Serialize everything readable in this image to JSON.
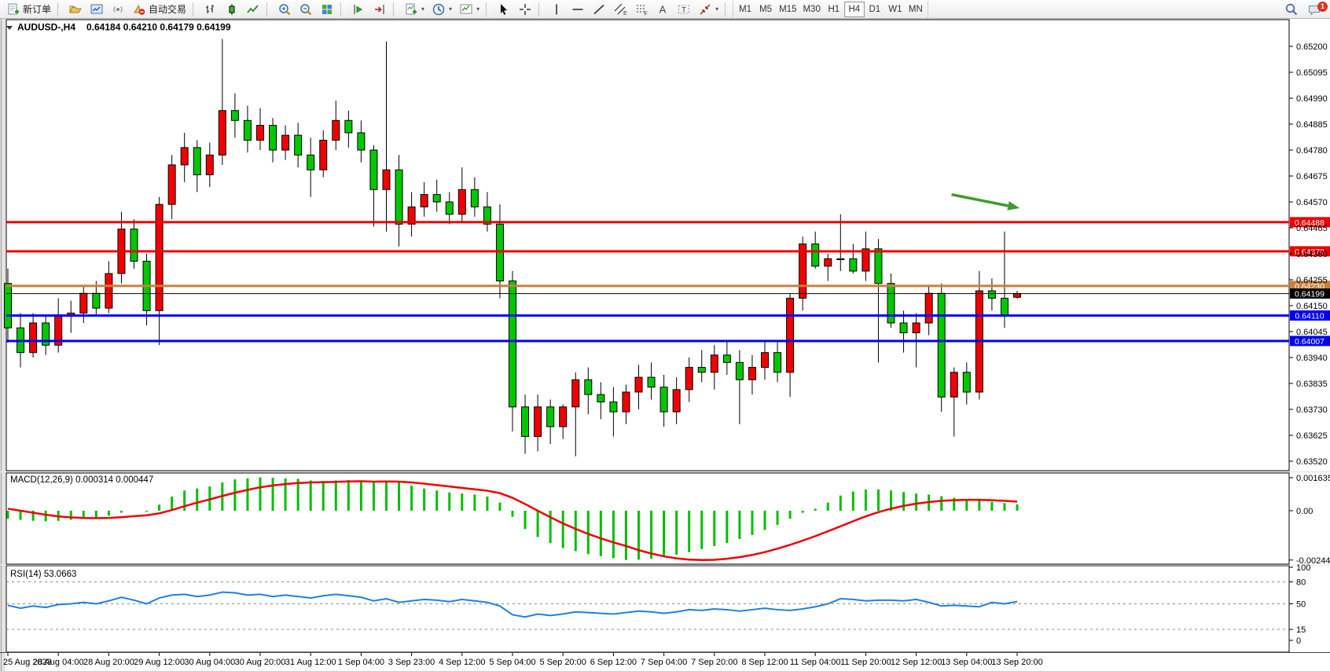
{
  "toolbar": {
    "new_order": "新订单",
    "auto_trading": "自动交易",
    "timeframes": [
      "M1",
      "M5",
      "M15",
      "M30",
      "H1",
      "H4",
      "D1",
      "W1",
      "MN"
    ],
    "active_timeframe": "H4",
    "notification_count": "1"
  },
  "chart": {
    "symbol_title": "AUDUSD-,H4",
    "ohlc_display": "0.64184 0.64210 0.64179 0.64199",
    "macd_label": "MACD(12,26,9) 0.000314 0.000447",
    "rsi_label": "RSI(14) 53.0663"
  },
  "chart_data": [
    {
      "type": "candlestick",
      "symbol": "AUDUSD-",
      "timeframe": "H4",
      "last_ohlc": {
        "open": 0.64184,
        "high": 0.6421,
        "low": 0.64179,
        "close": 0.64199
      },
      "up_color": "#f20000",
      "down_color": "#00c800",
      "wick_color": "#000000",
      "grid": false,
      "y_ticks": [
        0.652,
        0.65095,
        0.6499,
        0.64885,
        0.6478,
        0.64675,
        0.6457,
        0.64465,
        0.6436,
        0.64255,
        0.6415,
        0.64045,
        0.6394,
        0.63835,
        0.6373,
        0.63625,
        0.6352
      ],
      "x_labels": [
        "25 Aug 2023",
        "28 Aug 04:00",
        "28 Aug 20:00",
        "29 Aug 12:00",
        "30 Aug 04:00",
        "30 Aug 20:00",
        "31 Aug 12:00",
        "1 Sep 04:00",
        "3 Sep 23:00",
        "4 Sep 12:00",
        "5 Sep 04:00",
        "5 Sep 20:00",
        "6 Sep 12:00",
        "7 Sep 04:00",
        "7 Sep 20:00",
        "8 Sep 12:00",
        "11 Sep 04:00",
        "11 Sep 20:00",
        "12 Sep 12:00",
        "13 Sep 04:00",
        "13 Sep 20:00"
      ],
      "bars_per_label": 4,
      "levels": [
        {
          "price": 0.64488,
          "label": "0.64488",
          "color": "#ee0000",
          "width": 3
        },
        {
          "price": 0.6437,
          "label": "0.64370",
          "color": "#ee0000",
          "width": 3
        },
        {
          "price": 0.6423,
          "label": "0.64230",
          "color": "#c8823c",
          "width": 3
        },
        {
          "price": 0.6411,
          "label": "0.64110",
          "color": "#0000ee",
          "width": 3
        },
        {
          "price": 0.64007,
          "label": "0.64007",
          "color": "#0000ee",
          "width": 3
        }
      ],
      "current_price": {
        "price": 0.64199,
        "label": "0.64199",
        "line_color": "#000000",
        "badge_color": "#000000"
      },
      "annotation_arrow": {
        "color": "#3e9b2e",
        "x1_bar": 74.8,
        "y1_price": 0.646,
        "x2_bar": 80.2,
        "y2_price": 0.64545
      },
      "candles": [
        [
          0.6424,
          0.643,
          0.64,
          0.6406
        ],
        [
          0.6406,
          0.6412,
          0.639,
          0.6396
        ],
        [
          0.6396,
          0.6412,
          0.6394,
          0.6408
        ],
        [
          0.6408,
          0.6411,
          0.6395,
          0.6399
        ],
        [
          0.6399,
          0.6418,
          0.6396,
          0.6411
        ],
        [
          0.6411,
          0.6417,
          0.6404,
          0.6412
        ],
        [
          0.6412,
          0.6423,
          0.6408,
          0.642
        ],
        [
          0.642,
          0.6425,
          0.6411,
          0.6414
        ],
        [
          0.6414,
          0.6433,
          0.6412,
          0.6428
        ],
        [
          0.6428,
          0.6453,
          0.6424,
          0.6446
        ],
        [
          0.6446,
          0.645,
          0.643,
          0.6433
        ],
        [
          0.6433,
          0.6436,
          0.6407,
          0.6413
        ],
        [
          0.6413,
          0.6459,
          0.6399,
          0.6456
        ],
        [
          0.6456,
          0.6476,
          0.645,
          0.6472
        ],
        [
          0.6472,
          0.6485,
          0.6465,
          0.6479
        ],
        [
          0.6479,
          0.6482,
          0.6461,
          0.6468
        ],
        [
          0.6468,
          0.6481,
          0.6463,
          0.6476
        ],
        [
          0.6476,
          0.6523,
          0.6472,
          0.6494
        ],
        [
          0.6494,
          0.6501,
          0.6483,
          0.649
        ],
        [
          0.649,
          0.6496,
          0.6477,
          0.6482
        ],
        [
          0.6482,
          0.6495,
          0.6478,
          0.6488
        ],
        [
          0.6488,
          0.6491,
          0.6473,
          0.6478
        ],
        [
          0.6478,
          0.6488,
          0.6474,
          0.6484
        ],
        [
          0.6484,
          0.6489,
          0.6471,
          0.6476
        ],
        [
          0.6476,
          0.6483,
          0.6459,
          0.647
        ],
        [
          0.647,
          0.6486,
          0.6467,
          0.6482
        ],
        [
          0.6482,
          0.6498,
          0.6478,
          0.649
        ],
        [
          0.649,
          0.6494,
          0.6479,
          0.6485
        ],
        [
          0.6485,
          0.649,
          0.6473,
          0.6478
        ],
        [
          0.6478,
          0.648,
          0.6447,
          0.6462
        ],
        [
          0.6462,
          0.6522,
          0.6445,
          0.647
        ],
        [
          0.647,
          0.6476,
          0.6439,
          0.6448
        ],
        [
          0.6448,
          0.6461,
          0.6443,
          0.6455
        ],
        [
          0.6455,
          0.6465,
          0.6451,
          0.646
        ],
        [
          0.646,
          0.6466,
          0.6453,
          0.6457
        ],
        [
          0.6457,
          0.6461,
          0.6448,
          0.6452
        ],
        [
          0.6452,
          0.6471,
          0.6449,
          0.6462
        ],
        [
          0.6462,
          0.6467,
          0.6451,
          0.6455
        ],
        [
          0.6455,
          0.6461,
          0.6445,
          0.6448
        ],
        [
          0.6448,
          0.6456,
          0.6418,
          0.6425
        ],
        [
          0.6425,
          0.6429,
          0.6364,
          0.6374
        ],
        [
          0.6374,
          0.6379,
          0.6355,
          0.6362
        ],
        [
          0.6362,
          0.6379,
          0.6356,
          0.6374
        ],
        [
          0.6374,
          0.6377,
          0.6359,
          0.6366
        ],
        [
          0.6366,
          0.6375,
          0.6361,
          0.6374
        ],
        [
          0.6374,
          0.6388,
          0.6354,
          0.6385
        ],
        [
          0.6385,
          0.639,
          0.6371,
          0.6379
        ],
        [
          0.6379,
          0.6384,
          0.6369,
          0.6376
        ],
        [
          0.6376,
          0.6382,
          0.6362,
          0.6372
        ],
        [
          0.6372,
          0.6383,
          0.6367,
          0.638
        ],
        [
          0.638,
          0.6391,
          0.6373,
          0.6386
        ],
        [
          0.6386,
          0.6392,
          0.6377,
          0.6382
        ],
        [
          0.6382,
          0.6387,
          0.6366,
          0.6372
        ],
        [
          0.6372,
          0.6386,
          0.6367,
          0.6381
        ],
        [
          0.6381,
          0.6394,
          0.6376,
          0.639
        ],
        [
          0.639,
          0.6397,
          0.6384,
          0.6388
        ],
        [
          0.6388,
          0.6399,
          0.6381,
          0.6395
        ],
        [
          0.6395,
          0.6401,
          0.6387,
          0.6392
        ],
        [
          0.6392,
          0.6397,
          0.6367,
          0.6385
        ],
        [
          0.6385,
          0.6395,
          0.6379,
          0.639
        ],
        [
          0.639,
          0.6401,
          0.6385,
          0.6396
        ],
        [
          0.6396,
          0.6401,
          0.6384,
          0.6388
        ],
        [
          0.6388,
          0.642,
          0.6378,
          0.6418
        ],
        [
          0.6418,
          0.6443,
          0.6413,
          0.644
        ],
        [
          0.644,
          0.6445,
          0.643,
          0.6431
        ],
        [
          0.6431,
          0.6436,
          0.6425,
          0.6434
        ],
        [
          0.6434,
          0.6452,
          0.6429,
          0.6434
        ],
        [
          0.6434,
          0.644,
          0.6428,
          0.6429
        ],
        [
          0.6429,
          0.6445,
          0.6425,
          0.6438
        ],
        [
          0.6438,
          0.6442,
          0.6392,
          0.6424
        ],
        [
          0.6424,
          0.6428,
          0.6406,
          0.6408
        ],
        [
          0.6408,
          0.6413,
          0.6396,
          0.6404
        ],
        [
          0.6404,
          0.6412,
          0.639,
          0.6408
        ],
        [
          0.6408,
          0.6423,
          0.6403,
          0.642
        ],
        [
          0.642,
          0.6424,
          0.6372,
          0.6378
        ],
        [
          0.6378,
          0.639,
          0.6362,
          0.6388
        ],
        [
          0.6388,
          0.6392,
          0.6375,
          0.638
        ],
        [
          0.638,
          0.6429,
          0.6377,
          0.6421
        ],
        [
          0.6421,
          0.6426,
          0.6413,
          0.6418
        ],
        [
          0.6418,
          0.6445,
          0.6406,
          0.6411
        ],
        [
          0.64184,
          0.6421,
          0.64179,
          0.64199
        ]
      ]
    },
    {
      "type": "bar",
      "name": "MACD(12,26,9)",
      "current_values": [
        0.000314,
        0.000447
      ],
      "hist_color": "#00c000",
      "signal_color": "#f00000",
      "value_scale": 1e-05,
      "y_ticks": [
        0.001635,
        0,
        -0.002442
      ],
      "y_tick_labels": [
        "0.001635",
        "0.00",
        "-0.002442"
      ],
      "values_1e5": [
        -40,
        -45,
        -50,
        -52,
        -50,
        -45,
        -40,
        -35,
        -25,
        -10,
        0,
        -5,
        30,
        70,
        100,
        110,
        120,
        140,
        155,
        160,
        165,
        163,
        160,
        158,
        150,
        148,
        150,
        152,
        148,
        140,
        150,
        140,
        125,
        110,
        100,
        90,
        85,
        80,
        70,
        40,
        -30,
        -90,
        -130,
        -160,
        -185,
        -200,
        -215,
        -225,
        -235,
        -244,
        -242,
        -238,
        -230,
        -218,
        -205,
        -190,
        -175,
        -160,
        -140,
        -120,
        -95,
        -70,
        -40,
        -10,
        10,
        40,
        75,
        95,
        105,
        105,
        100,
        92,
        85,
        80,
        72,
        64,
        57,
        50,
        44,
        38,
        31.4
      ],
      "signal_1e5": [
        10,
        0,
        -10,
        -20,
        -28,
        -33,
        -36,
        -37,
        -36,
        -32,
        -27,
        -23,
        -13,
        3,
        22,
        40,
        56,
        73,
        89,
        103,
        116,
        125,
        132,
        137,
        140,
        141,
        143,
        145,
        146,
        144,
        145,
        144,
        140,
        134,
        127,
        120,
        113,
        106,
        99,
        87,
        64,
        33,
        0,
        -32,
        -63,
        -90,
        -115,
        -137,
        -157,
        -175,
        -195,
        -212,
        -226,
        -236,
        -242,
        -244,
        -243,
        -238,
        -230,
        -219,
        -205,
        -188,
        -169,
        -148,
        -126,
        -102,
        -77,
        -52,
        -28,
        -7,
        10,
        24,
        35,
        43,
        49,
        52,
        54,
        54,
        52,
        49,
        44.7
      ]
    },
    {
      "type": "line",
      "name": "RSI(14)",
      "current_value": 53.0663,
      "line_color": "#2080e0",
      "range": [
        0,
        100
      ],
      "level_lines": [
        80,
        50,
        15
      ],
      "y_tick_labels": [
        "100",
        "80",
        "50",
        "15",
        "0"
      ],
      "y_tick_values": [
        100,
        80,
        50,
        15,
        0
      ],
      "values": [
        48,
        44,
        47,
        45,
        49,
        50,
        52,
        50,
        54,
        59,
        55,
        50,
        58,
        62,
        63,
        60,
        62,
        66,
        65,
        62,
        63,
        60,
        62,
        60,
        58,
        61,
        63,
        61,
        59,
        54,
        57,
        52,
        54,
        56,
        55,
        53,
        56,
        54,
        52,
        47,
        35,
        32,
        36,
        34,
        36,
        39,
        38,
        37,
        36,
        38,
        40,
        39,
        37,
        39,
        42,
        41,
        43,
        42,
        40,
        42,
        44,
        42,
        41,
        43,
        46,
        50,
        57,
        56,
        54,
        55,
        55,
        54,
        56,
        52,
        47,
        48,
        47,
        46,
        52,
        50,
        53.07
      ]
    }
  ]
}
